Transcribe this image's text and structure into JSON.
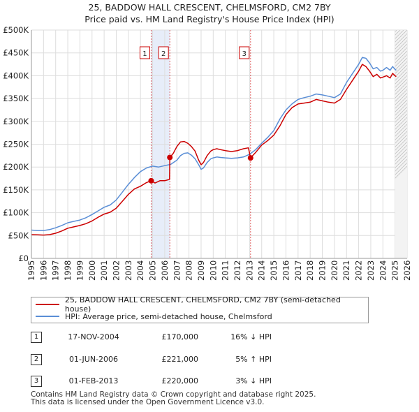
{
  "title_line1": "25, BADDOW HALL CRESCENT, CHELMSFORD, CM2 7BY",
  "title_line2": "Price paid vs. HM Land Registry's House Price Index (HPI)",
  "chart_data": {
    "type": "line",
    "title": "25, BADDOW HALL CRESCENT, CHELMSFORD, CM2 7BY — Price paid vs. HM Land Registry's House Price Index (HPI)",
    "xlabel": "",
    "ylabel": "",
    "xlim": [
      1995,
      2026
    ],
    "ylim": [
      0,
      500000
    ],
    "x_ticks": [
      1995,
      1996,
      1997,
      1998,
      1999,
      2000,
      2001,
      2002,
      2003,
      2004,
      2005,
      2006,
      2007,
      2008,
      2009,
      2010,
      2011,
      2012,
      2013,
      2014,
      2015,
      2016,
      2017,
      2018,
      2019,
      2020,
      2021,
      2022,
      2023,
      2024,
      2025,
      2026
    ],
    "y_ticks": [
      {
        "value": 0,
        "label": "£0"
      },
      {
        "value": 50000,
        "label": "£50K"
      },
      {
        "value": 100000,
        "label": "£100K"
      },
      {
        "value": 150000,
        "label": "£150K"
      },
      {
        "value": 200000,
        "label": "£200K"
      },
      {
        "value": 250000,
        "label": "£250K"
      },
      {
        "value": 300000,
        "label": "£300K"
      },
      {
        "value": 350000,
        "label": "£350K"
      },
      {
        "value": 400000,
        "label": "£400K"
      },
      {
        "value": 450000,
        "label": "£450K"
      },
      {
        "value": 500000,
        "label": "£500K"
      }
    ],
    "grid": true,
    "shaded_periods": [
      [
        2004.88,
        2006.42
      ]
    ],
    "future_hatch_from": 2025.0,
    "series": [
      {
        "name": "25, BADDOW HALL CRESCENT, CHELMSFORD, CM2 7BY (semi-detached house)",
        "color": "#cc0000",
        "x": [
          1995.0,
          1995.5,
          1996.0,
          1996.5,
          1997.0,
          1997.5,
          1998.0,
          1998.5,
          1999.0,
          1999.5,
          2000.0,
          2000.5,
          2001.0,
          2001.5,
          2002.0,
          2002.5,
          2003.0,
          2003.5,
          2004.0,
          2004.5,
          2004.88,
          2005.2,
          2005.6,
          2006.0,
          2006.4,
          2006.42,
          2006.7,
          2007.0,
          2007.3,
          2007.6,
          2007.9,
          2008.2,
          2008.5,
          2008.8,
          2009.0,
          2009.2,
          2009.5,
          2009.8,
          2010.0,
          2010.3,
          2010.6,
          2011.0,
          2011.5,
          2012.0,
          2012.5,
          2012.9,
          2013.08,
          2013.5,
          2014.0,
          2014.5,
          2015.0,
          2015.5,
          2016.0,
          2016.5,
          2017.0,
          2017.5,
          2018.0,
          2018.5,
          2019.0,
          2019.5,
          2020.0,
          2020.5,
          2021.0,
          2021.5,
          2022.0,
          2022.3,
          2022.6,
          2022.9,
          2023.2,
          2023.5,
          2023.8,
          2024.0,
          2024.3,
          2024.6,
          2024.8,
          2025.0,
          2025.1
        ],
        "y": [
          52000,
          51500,
          51000,
          52000,
          55000,
          60000,
          66000,
          69000,
          72000,
          76000,
          82000,
          90000,
          97000,
          101000,
          110000,
          125000,
          140000,
          152000,
          158000,
          166000,
          170000,
          165000,
          170000,
          170000,
          173000,
          221000,
          230000,
          245000,
          255000,
          256000,
          252000,
          245000,
          235000,
          215000,
          205000,
          210000,
          225000,
          235000,
          238000,
          240000,
          238000,
          236000,
          234000,
          236000,
          240000,
          242000,
          220000,
          232000,
          248000,
          258000,
          270000,
          290000,
          315000,
          330000,
          338000,
          340000,
          342000,
          348000,
          345000,
          342000,
          340000,
          348000,
          370000,
          390000,
          410000,
          425000,
          420000,
          410000,
          398000,
          403000,
          395000,
          397000,
          400000,
          395000,
          405000,
          400000,
          398000
        ]
      },
      {
        "name": "HPI: Average price, semi-detached house, Chelmsford",
        "color": "#5a8ed6",
        "x": [
          1995.0,
          1995.5,
          1996.0,
          1996.5,
          1997.0,
          1997.5,
          1998.0,
          1998.5,
          1999.0,
          1999.5,
          2000.0,
          2000.5,
          2001.0,
          2001.5,
          2002.0,
          2002.5,
          2003.0,
          2003.5,
          2004.0,
          2004.5,
          2005.0,
          2005.5,
          2006.0,
          2006.5,
          2007.0,
          2007.3,
          2007.6,
          2007.9,
          2008.2,
          2008.5,
          2008.8,
          2009.0,
          2009.2,
          2009.5,
          2009.8,
          2010.0,
          2010.3,
          2010.6,
          2011.0,
          2011.5,
          2012.0,
          2012.5,
          2013.0,
          2013.5,
          2014.0,
          2014.5,
          2015.0,
          2015.5,
          2016.0,
          2016.5,
          2017.0,
          2017.5,
          2018.0,
          2018.5,
          2019.0,
          2019.5,
          2020.0,
          2020.5,
          2021.0,
          2021.5,
          2022.0,
          2022.3,
          2022.6,
          2022.9,
          2023.2,
          2023.5,
          2023.8,
          2024.0,
          2024.3,
          2024.6,
          2024.8,
          2025.0,
          2025.1
        ],
        "y": [
          62000,
          61000,
          61000,
          63000,
          67000,
          72000,
          78000,
          81000,
          84000,
          89000,
          96000,
          104000,
          112000,
          117000,
          128000,
          145000,
          162000,
          177000,
          190000,
          198000,
          202000,
          200000,
          203000,
          206000,
          215000,
          225000,
          230000,
          231000,
          226000,
          218000,
          205000,
          195000,
          198000,
          210000,
          218000,
          220000,
          222000,
          221000,
          220000,
          219000,
          220000,
          222000,
          228000,
          238000,
          252000,
          265000,
          280000,
          305000,
          325000,
          338000,
          348000,
          352000,
          355000,
          360000,
          358000,
          355000,
          352000,
          360000,
          385000,
          405000,
          425000,
          440000,
          438000,
          428000,
          415000,
          418000,
          410000,
          412000,
          418000,
          412000,
          420000,
          414000,
          412000
        ]
      }
    ],
    "sales": [
      {
        "label": "1",
        "x": 2004.88,
        "y": 170000
      },
      {
        "label": "2",
        "x": 2006.42,
        "y": 221000
      },
      {
        "label": "3",
        "x": 2013.08,
        "y": 220000
      }
    ]
  },
  "legend": {
    "property": "25, BADDOW HALL CRESCENT, CHELMSFORD, CM2 7BY (semi-detached house)",
    "hpi": "HPI: Average price, semi-detached house, Chelmsford"
  },
  "sales_table": [
    {
      "num": "1",
      "date": "17-NOV-2004",
      "price": "£170,000",
      "delta": "16% ↓ HPI"
    },
    {
      "num": "2",
      "date": "01-JUN-2006",
      "price": "£221,000",
      "delta": "5% ↑ HPI"
    },
    {
      "num": "3",
      "date": "01-FEB-2013",
      "price": "£220,000",
      "delta": "3% ↓ HPI"
    }
  ],
  "footer": {
    "line1": "Contains HM Land Registry data © Crown copyright and database right 2025.",
    "line2": "This data is licensed under the Open Government Licence v3.0."
  }
}
